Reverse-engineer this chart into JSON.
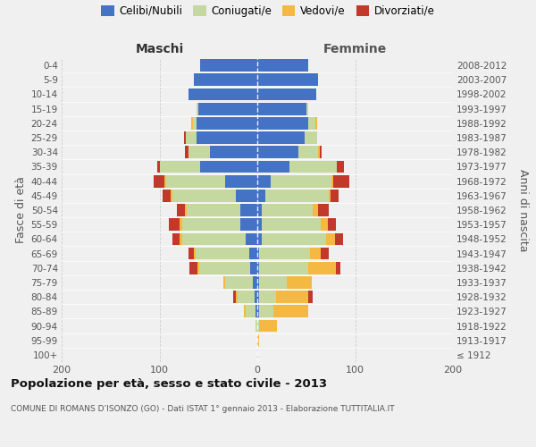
{
  "age_groups": [
    "100+",
    "95-99",
    "90-94",
    "85-89",
    "80-84",
    "75-79",
    "70-74",
    "65-69",
    "60-64",
    "55-59",
    "50-54",
    "45-49",
    "40-44",
    "35-39",
    "30-34",
    "25-29",
    "20-24",
    "15-19",
    "10-14",
    "5-9",
    "0-4"
  ],
  "birth_years": [
    "≤ 1912",
    "1913-1917",
    "1918-1922",
    "1923-1927",
    "1928-1932",
    "1933-1937",
    "1938-1942",
    "1943-1947",
    "1948-1952",
    "1953-1957",
    "1958-1962",
    "1963-1967",
    "1968-1972",
    "1973-1977",
    "1978-1982",
    "1983-1987",
    "1988-1992",
    "1993-1997",
    "1998-2002",
    "2003-2007",
    "2008-2012"
  ],
  "maschi_celibi": [
    0,
    0,
    0,
    2,
    3,
    5,
    7,
    8,
    12,
    17,
    17,
    22,
    33,
    58,
    48,
    62,
    62,
    60,
    70,
    65,
    58
  ],
  "maschi_coniugati": [
    0,
    0,
    2,
    10,
    17,
    28,
    52,
    55,
    65,
    60,
    55,
    65,
    60,
    42,
    22,
    11,
    4,
    2,
    0,
    0,
    0
  ],
  "maschi_vedovi": [
    0,
    0,
    0,
    2,
    2,
    2,
    2,
    2,
    2,
    2,
    2,
    2,
    2,
    0,
    0,
    0,
    2,
    0,
    0,
    0,
    0
  ],
  "maschi_divorziati": [
    0,
    0,
    0,
    0,
    3,
    0,
    8,
    5,
    8,
    11,
    8,
    8,
    11,
    2,
    4,
    2,
    0,
    0,
    0,
    0,
    0
  ],
  "femmine_nubili": [
    0,
    0,
    0,
    2,
    2,
    2,
    2,
    2,
    5,
    5,
    5,
    8,
    14,
    33,
    42,
    48,
    52,
    50,
    60,
    62,
    52
  ],
  "femmine_coniugate": [
    0,
    0,
    2,
    14,
    17,
    28,
    50,
    52,
    65,
    60,
    52,
    65,
    62,
    48,
    20,
    13,
    7,
    2,
    0,
    0,
    0
  ],
  "femmine_vedove": [
    0,
    2,
    18,
    36,
    33,
    26,
    28,
    11,
    9,
    7,
    5,
    2,
    2,
    0,
    2,
    0,
    2,
    0,
    0,
    0,
    0
  ],
  "femmine_divorziate": [
    0,
    0,
    0,
    0,
    5,
    0,
    5,
    8,
    9,
    8,
    11,
    8,
    16,
    8,
    2,
    0,
    0,
    0,
    0,
    0,
    0
  ],
  "col_celibi": "#4472c4",
  "col_coniugati": "#c5d8a0",
  "col_vedovi": "#f4b942",
  "col_divorziati": "#c0392b",
  "title": "Popolazione per età, sesso e stato civile - 2013",
  "subtitle": "COMUNE DI ROMANS D’ISONZO (GO) - Dati ISTAT 1° gennaio 2013 - Elaborazione TUTTITALIA.IT",
  "legend_labels": [
    "Celibi/Nubili",
    "Coniugati/e",
    "Vedovi/e",
    "Divorziati/e"
  ],
  "xlim": 200,
  "bg_color": "#f0f0f0"
}
